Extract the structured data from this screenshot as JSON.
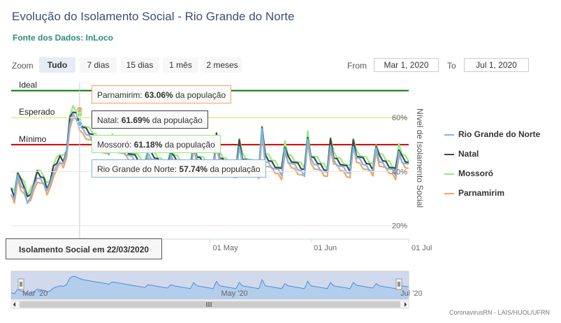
{
  "header": {
    "title": "Evolução do Isolamento Social - Rio Grande do Norte",
    "subtitle": "Fonte dos Dados: InLoco"
  },
  "zoom": {
    "label": "Zoom",
    "buttons": [
      "Tudo",
      "7 dias",
      "15 dias",
      "1 mês",
      "2 meses"
    ],
    "active": "Tudo"
  },
  "range": {
    "from_label": "From",
    "from_value": "Mar 1, 2020",
    "to_label": "To",
    "to_value": "Jul 1, 2020"
  },
  "chart_data": {
    "type": "line",
    "xlim": [
      "2020-03-01",
      "2020-07-01"
    ],
    "x_ticks": [
      "01 May",
      "01 Jun",
      "01 Jul"
    ],
    "ylim": [
      15,
      73
    ],
    "y_ticks": [
      "20%",
      "40%",
      "60%"
    ],
    "y_label": "Nível de Isolamento Social",
    "plot_bands": [
      {
        "label": "Ideal",
        "value": 70,
        "color": "#007700"
      },
      {
        "label": "Esperado",
        "value": 60,
        "color": "#f0f07a"
      },
      {
        "label": "Mínimo",
        "value": 50,
        "color": "#cc0000"
      }
    ],
    "legend_position": "right",
    "series": [
      {
        "name": "Rio Grande do Norte",
        "color": "#7cb5ec",
        "offset": 0
      },
      {
        "name": "Natal",
        "color": "#434348",
        "offset": 1.4
      },
      {
        "name": "Mossoró",
        "color": "#90ed7d",
        "offset": 2.6
      },
      {
        "name": "Parnamirim",
        "color": "#f7a35c",
        "offset": -1.2
      }
    ],
    "base_values": [
      32,
      30,
      38,
      35,
      33,
      29,
      31,
      34,
      38,
      37,
      36,
      33,
      35,
      40,
      42,
      44,
      43,
      46,
      58,
      61,
      60,
      57,
      55,
      54,
      53,
      52,
      51,
      50,
      49,
      48,
      47,
      51,
      50,
      49,
      48,
      47,
      46,
      45,
      44,
      43,
      42,
      41,
      46,
      45,
      44,
      43,
      42,
      41,
      40,
      46,
      44,
      43,
      42,
      41,
      40,
      39,
      50,
      44,
      43,
      42,
      41,
      40,
      39,
      52,
      44,
      43,
      42,
      41,
      40,
      39,
      50,
      44,
      43,
      42,
      41,
      40,
      39,
      55,
      44,
      43,
      42,
      41,
      40,
      39,
      48,
      44,
      43,
      42,
      41,
      40,
      39,
      52,
      44,
      43,
      42,
      41,
      40,
      39,
      50,
      44,
      43,
      42,
      41,
      40,
      39,
      50,
      45,
      44,
      43,
      42,
      41,
      40,
      48,
      44,
      43,
      42,
      41,
      40,
      39,
      47,
      44,
      43,
      42
    ],
    "tooltip_date": "Isolamento Social em 22/03/2020",
    "tooltip_entries": [
      {
        "name": "Parnamirim",
        "value": "63.06%",
        "suffix": "da população",
        "color": "#f7a35c"
      },
      {
        "name": "Natal",
        "value": "61.69%",
        "suffix": "da população",
        "color": "#434348"
      },
      {
        "name": "Mossoró",
        "value": "61.18%",
        "suffix": "da população",
        "color": "#90ed7d"
      },
      {
        "name": "Rio Grande do Norte",
        "value": "57.74%",
        "suffix": "da população",
        "color": "#7cb5ec"
      }
    ]
  },
  "navigator": {
    "labels": [
      "Mar '20",
      "May '20",
      "Jul '20"
    ]
  },
  "credits": "CoronavirusRN - LAIS/HUOL/UFRN"
}
